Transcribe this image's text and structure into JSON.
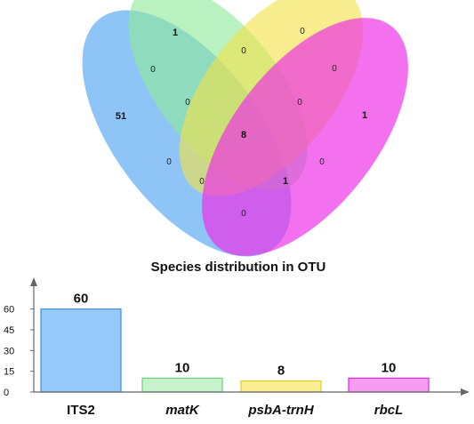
{
  "chart_data": [
    {
      "type": "venn",
      "sets": [
        {
          "name": "ITS2",
          "color": "#4a9ff0"
        },
        {
          "name": "matK",
          "color": "#8ee89b"
        },
        {
          "name": "psbA-trnH",
          "color": "#f2e24a"
        },
        {
          "name": "rbcL",
          "color": "#ee2ee8"
        }
      ],
      "counts": [
        {
          "region": "ITS2 only",
          "value": "51"
        },
        {
          "region": "matK only",
          "value": "1"
        },
        {
          "region": "psbA-trnH only",
          "value": "0"
        },
        {
          "region": "rbcL only",
          "value": "1"
        },
        {
          "region": "ITS2 & matK",
          "value": "0"
        },
        {
          "region": "matK & psbA-trnH",
          "value": "0"
        },
        {
          "region": "psbA-trnH & rbcL",
          "value": "0"
        },
        {
          "region": "ITS2 & matK & psbA-trnH",
          "value": "0"
        },
        {
          "region": "matK & psbA-trnH & rbcL",
          "value": "0"
        },
        {
          "region": "all four",
          "value": "8"
        },
        {
          "region": "ITS2 & psbA-trnH",
          "value": "0"
        },
        {
          "region": "matK & rbcL",
          "value": "0"
        },
        {
          "region": "ITS2 & psbA-trnH & rbcL",
          "value": "0"
        },
        {
          "region": "ITS2 & matK & rbcL",
          "value": "1"
        },
        {
          "region": "ITS2 & rbcL",
          "value": "0"
        }
      ]
    },
    {
      "type": "bar",
      "title": "Species distribution in OTU",
      "categories": [
        "ITS2",
        "matK",
        "psbA-trnH",
        "rbcL"
      ],
      "italic_categories": [
        false,
        true,
        true,
        true
      ],
      "values": [
        60,
        10,
        8,
        10
      ],
      "value_labels": [
        "60",
        "10",
        "8",
        "10"
      ],
      "fill_colors": [
        "#98c9fb",
        "#c7f2cc",
        "#faef92",
        "#f59bf2"
      ],
      "edge_colors": [
        "#3f8ee6",
        "#6fd07e",
        "#e3cf2a",
        "#e02adf"
      ],
      "yticks": [
        "0",
        "15",
        "30",
        "45",
        "60"
      ],
      "ytick_values": [
        0,
        15,
        30,
        45,
        60
      ],
      "ylim": [
        0,
        72
      ],
      "axis_color": "#666666"
    }
  ]
}
